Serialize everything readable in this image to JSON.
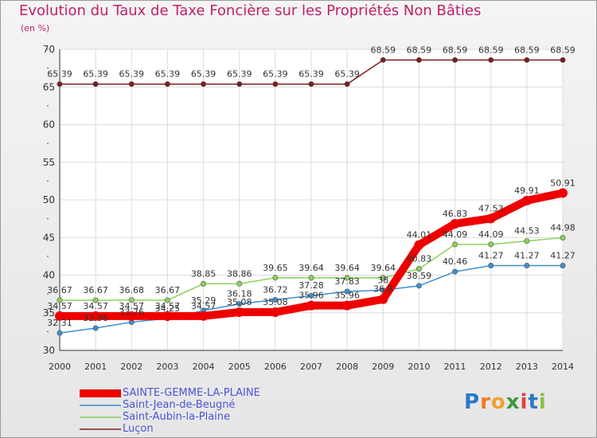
{
  "chart_data": {
    "type": "line",
    "title": "Evolution du Taux de Taxe Foncière sur les Propriétés Non Bâties",
    "ylabel": "(en %)",
    "xlabel": "",
    "x": [
      "2000",
      "2001",
      "2002",
      "2003",
      "2004",
      "2005",
      "2006",
      "2007",
      "2008",
      "2009",
      "2010",
      "2011",
      "2012",
      "2013",
      "2014"
    ],
    "ylim": [
      30,
      70
    ],
    "yticks": [
      30,
      35,
      40,
      45,
      50,
      55,
      60,
      65,
      70
    ],
    "series": [
      {
        "name": "SAINTE-GEMME-LA-PLAINE",
        "color": "#ee0000",
        "values": [
          34.57,
          34.57,
          34.57,
          34.57,
          34.57,
          35.08,
          35.08,
          35.96,
          35.96,
          36.8,
          44.01,
          46.83,
          47.53,
          49.91,
          50.91
        ],
        "labels": [
          "34.57",
          "34.57",
          "34.57",
          "34.57",
          "34.57",
          "35.08",
          "35.08",
          "35.96",
          "35.96",
          "36.8",
          "44.01",
          "46.83",
          "47.53",
          "49.91",
          "50.91"
        ]
      },
      {
        "name": "Saint-Jean-de-Beugné",
        "color": "#3d8fd1",
        "values": [
          32.31,
          32.96,
          33.76,
          34.25,
          35.29,
          36.18,
          36.72,
          37.28,
          37.83,
          38.0,
          38.59,
          40.46,
          41.27,
          41.27,
          41.27
        ],
        "labels": [
          "32.31",
          "32.96",
          "33.76",
          "34.25",
          "35.29",
          "36.18",
          "36.72",
          "37.28",
          "37.83",
          "38",
          "38.59",
          "40.46",
          "41.27",
          "41.27",
          "41.27"
        ]
      },
      {
        "name": "Saint-Aubin-la-Plaine",
        "color": "#8cd05a",
        "values": [
          36.67,
          36.67,
          36.68,
          36.67,
          38.85,
          38.86,
          39.65,
          39.64,
          39.64,
          39.64,
          40.83,
          44.09,
          44.09,
          44.53,
          44.98
        ],
        "labels": [
          "36.67",
          "36.67",
          "36.68",
          "36.67",
          "38.85",
          "38.86",
          "39.65",
          "39.64",
          "39.64",
          "39.64",
          "40.83",
          "44.09",
          "44.09",
          "44.53",
          "44.98"
        ]
      },
      {
        "name": "Luçon",
        "color": "#7a1e1e",
        "values": [
          65.39,
          65.39,
          65.39,
          65.39,
          65.39,
          65.39,
          65.39,
          65.39,
          65.39,
          68.59,
          68.59,
          68.59,
          68.59,
          68.59,
          68.59
        ],
        "labels": [
          "65.39",
          "65.39",
          "65.39",
          "65.39",
          "65.39",
          "65.39",
          "65.39",
          "65.39",
          "65.39",
          "68.59",
          "68.59",
          "68.59",
          "68.59",
          "68.59",
          "68.59"
        ]
      }
    ]
  },
  "logo": {
    "text": "Proxiti",
    "letters": [
      "P",
      "r",
      "o",
      "x",
      "i",
      "t",
      "i"
    ],
    "colors": [
      "#2a78c8",
      "#f07a20",
      "#f0a030",
      "#3d9a3d",
      "#e04040",
      "#2a78c8",
      "#8cc040"
    ]
  }
}
